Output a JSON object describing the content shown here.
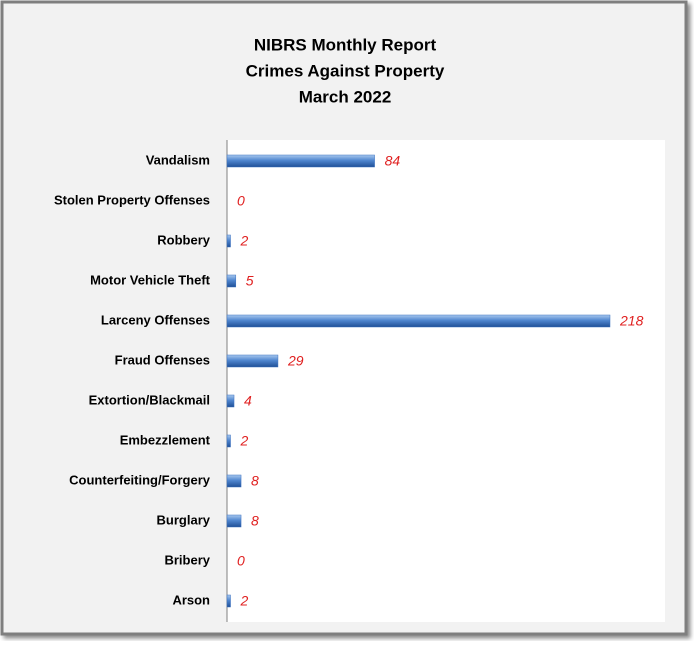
{
  "chart_data": {
    "type": "bar",
    "orientation": "horizontal",
    "title": [
      "NIBRS Monthly Report",
      "Crimes Against Property",
      "March 2022"
    ],
    "categories": [
      "Vandalism",
      "Stolen Property Offenses",
      "Robbery",
      "Motor Vehicle Theft",
      "Larceny Offenses",
      "Fraud Offenses",
      "Extortion/Blackmail",
      "Embezzlement",
      "Counterfeiting/Forgery",
      "Burglary",
      "Bribery",
      "Arson"
    ],
    "values": [
      84,
      0,
      2,
      5,
      218,
      29,
      4,
      2,
      8,
      8,
      0,
      2
    ],
    "color": "#3d72c0"
  }
}
